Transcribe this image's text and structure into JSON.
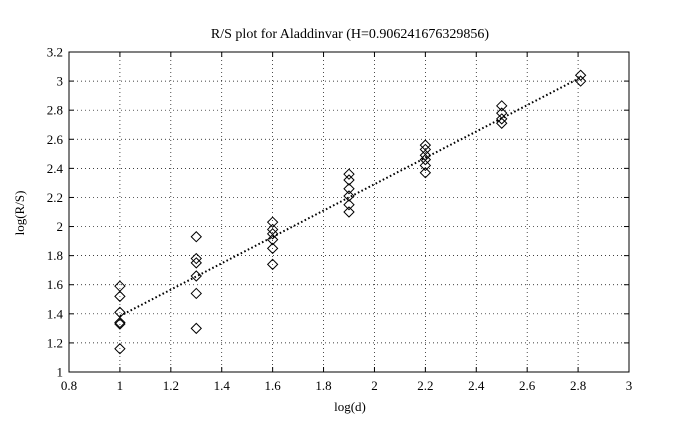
{
  "chart_data": {
    "type": "scatter",
    "title": "R/S plot for Aladdinvar (H=0.906241676329856)",
    "xlabel": "log(d)",
    "ylabel": "log(R/S)",
    "xlim": [
      0.8,
      3
    ],
    "ylim": [
      1,
      3.2
    ],
    "xticks": [
      0.8,
      1,
      1.2,
      1.4,
      1.6,
      1.8,
      2,
      2.2,
      2.4,
      2.6,
      2.8,
      3
    ],
    "yticks": [
      1,
      1.2,
      1.4,
      1.6,
      1.8,
      2,
      2.2,
      2.4,
      2.6,
      2.8,
      3,
      3.2
    ],
    "xtick_labels": [
      "0.8",
      "1",
      "1.2",
      "1.4",
      "1.6",
      "1.8",
      "2",
      "2.2",
      "2.4",
      "2.6",
      "2.8",
      "3"
    ],
    "ytick_labels": [
      "1",
      "1.2",
      "1.4",
      "1.6",
      "1.8",
      "2",
      "2.2",
      "2.4",
      "2.6",
      "2.8",
      "3",
      "3.2"
    ],
    "grid": true,
    "grid_style": "dotted",
    "marker": "diamond",
    "series": [
      {
        "points": [
          [
            1.0,
            1.59
          ],
          [
            1.0,
            1.52
          ],
          [
            1.0,
            1.41
          ],
          [
            1.0,
            1.34
          ],
          [
            1.0,
            1.33
          ],
          [
            1.0,
            1.16
          ],
          [
            1.3,
            1.93
          ],
          [
            1.3,
            1.78
          ],
          [
            1.3,
            1.75
          ],
          [
            1.3,
            1.66
          ],
          [
            1.3,
            1.54
          ],
          [
            1.3,
            1.3
          ],
          [
            1.6,
            2.03
          ],
          [
            1.6,
            1.98
          ],
          [
            1.6,
            1.95
          ],
          [
            1.6,
            1.91
          ],
          [
            1.6,
            1.85
          ],
          [
            1.6,
            1.74
          ],
          [
            1.9,
            2.36
          ],
          [
            1.9,
            2.32
          ],
          [
            1.9,
            2.26
          ],
          [
            1.9,
            2.21
          ],
          [
            1.9,
            2.15
          ],
          [
            1.9,
            2.1
          ],
          [
            2.2,
            2.56
          ],
          [
            2.2,
            2.53
          ],
          [
            2.2,
            2.49
          ],
          [
            2.2,
            2.46
          ],
          [
            2.2,
            2.42
          ],
          [
            2.2,
            2.37
          ],
          [
            2.5,
            2.83
          ],
          [
            2.5,
            2.78
          ],
          [
            2.5,
            2.74
          ],
          [
            2.5,
            2.71
          ],
          [
            2.81,
            3.04
          ],
          [
            2.81,
            3.0
          ]
        ]
      },
      {
        "type": "line",
        "style": "dotted",
        "x": [
          1.0,
          2.81
        ],
        "y": [
          1.385,
          3.025
        ]
      }
    ],
    "colors": {
      "marker": "#000000",
      "fit": "#000000",
      "grid": "#000000"
    }
  }
}
